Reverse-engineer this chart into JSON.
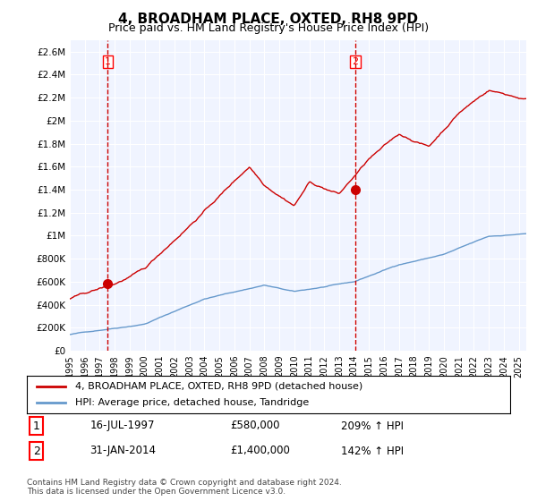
{
  "title": "4, BROADHAM PLACE, OXTED, RH8 9PD",
  "subtitle": "Price paid vs. HM Land Registry's House Price Index (HPI)",
  "legend_line1": "4, BROADHAM PLACE, OXTED, RH8 9PD (detached house)",
  "legend_line2": "HPI: Average price, detached house, Tandridge",
  "annotation1_label": "1",
  "annotation1_date": "16-JUL-1997",
  "annotation1_price": "£580,000",
  "annotation1_hpi": "209% ↑ HPI",
  "annotation2_label": "2",
  "annotation2_date": "31-JAN-2014",
  "annotation2_price": "£1,400,000",
  "annotation2_hpi": "142% ↑ HPI",
  "footnote": "Contains HM Land Registry data © Crown copyright and database right 2024.\nThis data is licensed under the Open Government Licence v3.0.",
  "hpi_color": "#6699cc",
  "price_color": "#cc0000",
  "marker_color": "#cc0000",
  "dashed_color": "#cc0000",
  "background_plot": "#f0f4ff",
  "background_fig": "#ffffff",
  "grid_color": "#ffffff",
  "ylim": [
    0,
    2700000
  ],
  "yticks": [
    0,
    200000,
    400000,
    600000,
    800000,
    1000000,
    1200000,
    1400000,
    1600000,
    1800000,
    2000000,
    2200000,
    2400000,
    2600000
  ],
  "ytick_labels": [
    "£0",
    "£200K",
    "£400K",
    "£600K",
    "£800K",
    "£1M",
    "£1.2M",
    "£1.4M",
    "£1.6M",
    "£1.8M",
    "£2M",
    "£2.2M",
    "£2.4M",
    "£2.6M"
  ],
  "sale1_x": 1997.54,
  "sale1_y": 580000,
  "sale2_x": 2014.08,
  "sale2_y": 1400000,
  "xmin": 1995,
  "xmax": 2025.5
}
